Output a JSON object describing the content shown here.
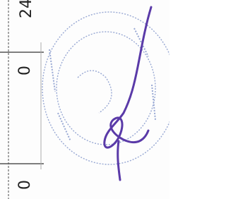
{
  "cells": [
    {
      "text": "24"
    },
    {
      "text": "0"
    },
    {
      "text": "0"
    }
  ]
}
